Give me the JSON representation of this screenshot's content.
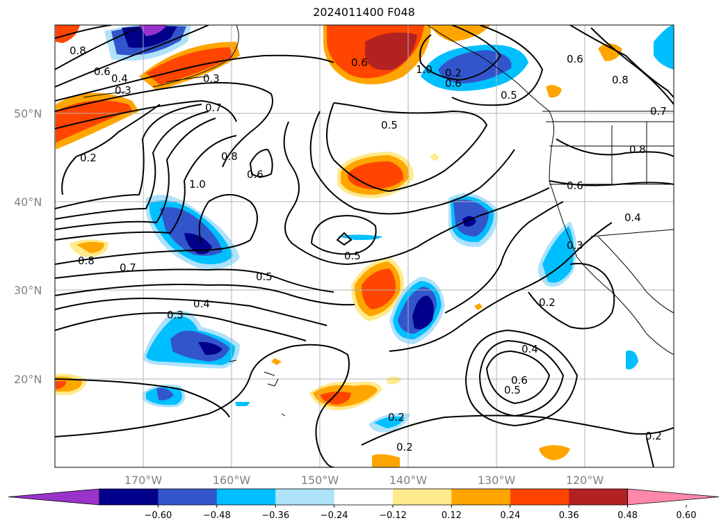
{
  "title": "2024011400 F048",
  "lat_labels": [
    "50°N",
    "40°N",
    "30°N",
    "20°N"
  ],
  "lon_labels": [
    "170°W",
    "160°W",
    "150°W",
    "140°W",
    "130°W",
    "120°W"
  ],
  "colorbar": {
    "ticks": [
      "−0.60",
      "−0.48",
      "−0.36",
      "−0.24",
      "−0.12",
      "0.12",
      "0.24",
      "0.36",
      "0.48",
      "0.60"
    ],
    "colors": [
      "#9933cc",
      "#00008b",
      "#3355cc",
      "#00bfff",
      "#aee2fa",
      "#ffffff",
      "#ffea8c",
      "#ffa500",
      "#ff4500",
      "#b22222",
      "#ff88aa"
    ]
  },
  "contour_labels": [
    "0.8",
    "0.6",
    "0.4",
    "0.3",
    "0.2",
    "0.3",
    "0.5",
    "0.6",
    "1.0",
    "0.6",
    "0.8",
    "0.7",
    "0.8",
    "0.7",
    "0.5",
    "0.8",
    "0.6",
    "1.0",
    "0.2",
    "0.6",
    "0.6",
    "0.4",
    "0.8",
    "0.7",
    "0.5",
    "0.5",
    "0.4",
    "0.3",
    "0.3",
    "0.2",
    "0.4",
    "0.6",
    "0.5",
    "0.2",
    "0.2",
    "0.2"
  ]
}
